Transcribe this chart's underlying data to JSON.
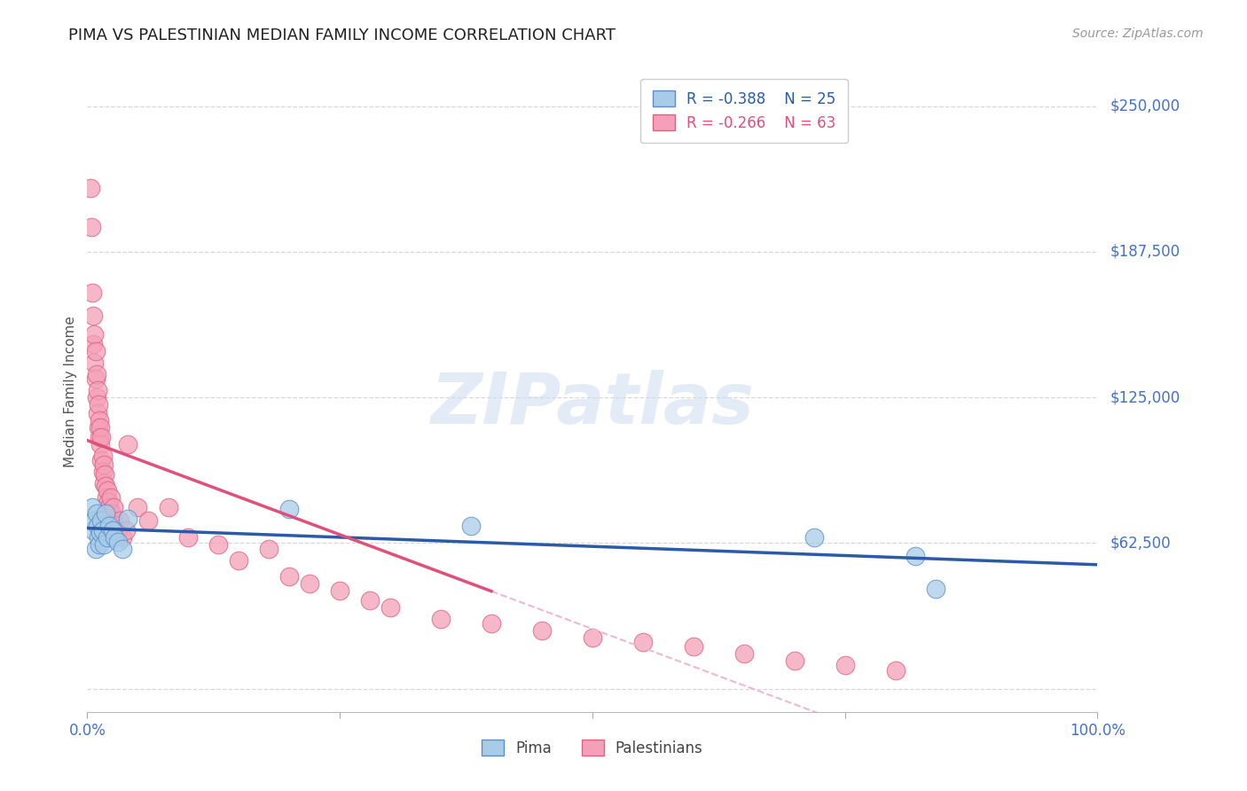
{
  "title": "PIMA VS PALESTINIAN MEDIAN FAMILY INCOME CORRELATION CHART",
  "source_text": "Source: ZipAtlas.com",
  "ylabel": "Median Family Income",
  "xlim": [
    0.0,
    1.0
  ],
  "ylim": [
    -10000,
    265000
  ],
  "background_color": "#ffffff",
  "grid_color": "#d8d8d8",
  "watermark_text": "ZIPatlas",
  "pima_color": "#a8cce8",
  "pal_color": "#f4a0b8",
  "pima_edge_color": "#5b8dc8",
  "pal_edge_color": "#e06080",
  "pima_line_color": "#2b5ba8",
  "pal_line_color": "#e0507a",
  "pal_dash_color": "#f0b8cc",
  "legend_r_pima": "-0.388",
  "legend_n_pima": "25",
  "legend_r_pal": "-0.266",
  "legend_n_pal": "63",
  "ytick_vals": [
    0,
    62500,
    125000,
    187500,
    250000
  ],
  "ytick_labels": [
    "",
    "$62,500",
    "$125,000",
    "$187,500",
    "$250,000"
  ],
  "pima_x": [
    0.005,
    0.006,
    0.007,
    0.008,
    0.009,
    0.01,
    0.011,
    0.012,
    0.013,
    0.014,
    0.015,
    0.016,
    0.018,
    0.02,
    0.022,
    0.025,
    0.027,
    0.03,
    0.035,
    0.04,
    0.2,
    0.38,
    0.72,
    0.82,
    0.84
  ],
  "pima_y": [
    78000,
    68000,
    72000,
    60000,
    75000,
    70000,
    65000,
    62000,
    67000,
    72000,
    68000,
    62000,
    75000,
    65000,
    70000,
    68000,
    65000,
    63000,
    60000,
    73000,
    77000,
    70000,
    65000,
    57000,
    43000
  ],
  "pal_x": [
    0.003,
    0.004,
    0.005,
    0.006,
    0.006,
    0.007,
    0.007,
    0.008,
    0.008,
    0.009,
    0.009,
    0.01,
    0.01,
    0.011,
    0.011,
    0.012,
    0.012,
    0.013,
    0.013,
    0.014,
    0.014,
    0.015,
    0.015,
    0.016,
    0.016,
    0.017,
    0.018,
    0.019,
    0.02,
    0.021,
    0.022,
    0.023,
    0.024,
    0.025,
    0.026,
    0.028,
    0.03,
    0.032,
    0.035,
    0.038,
    0.04,
    0.05,
    0.06,
    0.08,
    0.1,
    0.13,
    0.15,
    0.18,
    0.2,
    0.22,
    0.25,
    0.28,
    0.3,
    0.35,
    0.4,
    0.45,
    0.5,
    0.55,
    0.6,
    0.65,
    0.7,
    0.75,
    0.8
  ],
  "pal_y": [
    215000,
    198000,
    170000,
    160000,
    148000,
    152000,
    140000,
    145000,
    133000,
    135000,
    125000,
    128000,
    118000,
    122000,
    112000,
    115000,
    108000,
    112000,
    105000,
    108000,
    98000,
    100000,
    93000,
    96000,
    88000,
    92000,
    87000,
    82000,
    85000,
    80000,
    78000,
    82000,
    75000,
    72000,
    78000,
    70000,
    68000,
    72000,
    65000,
    68000,
    105000,
    78000,
    72000,
    78000,
    65000,
    62000,
    55000,
    60000,
    48000,
    45000,
    42000,
    38000,
    35000,
    30000,
    28000,
    25000,
    22000,
    20000,
    18000,
    15000,
    12000,
    10000,
    8000
  ]
}
